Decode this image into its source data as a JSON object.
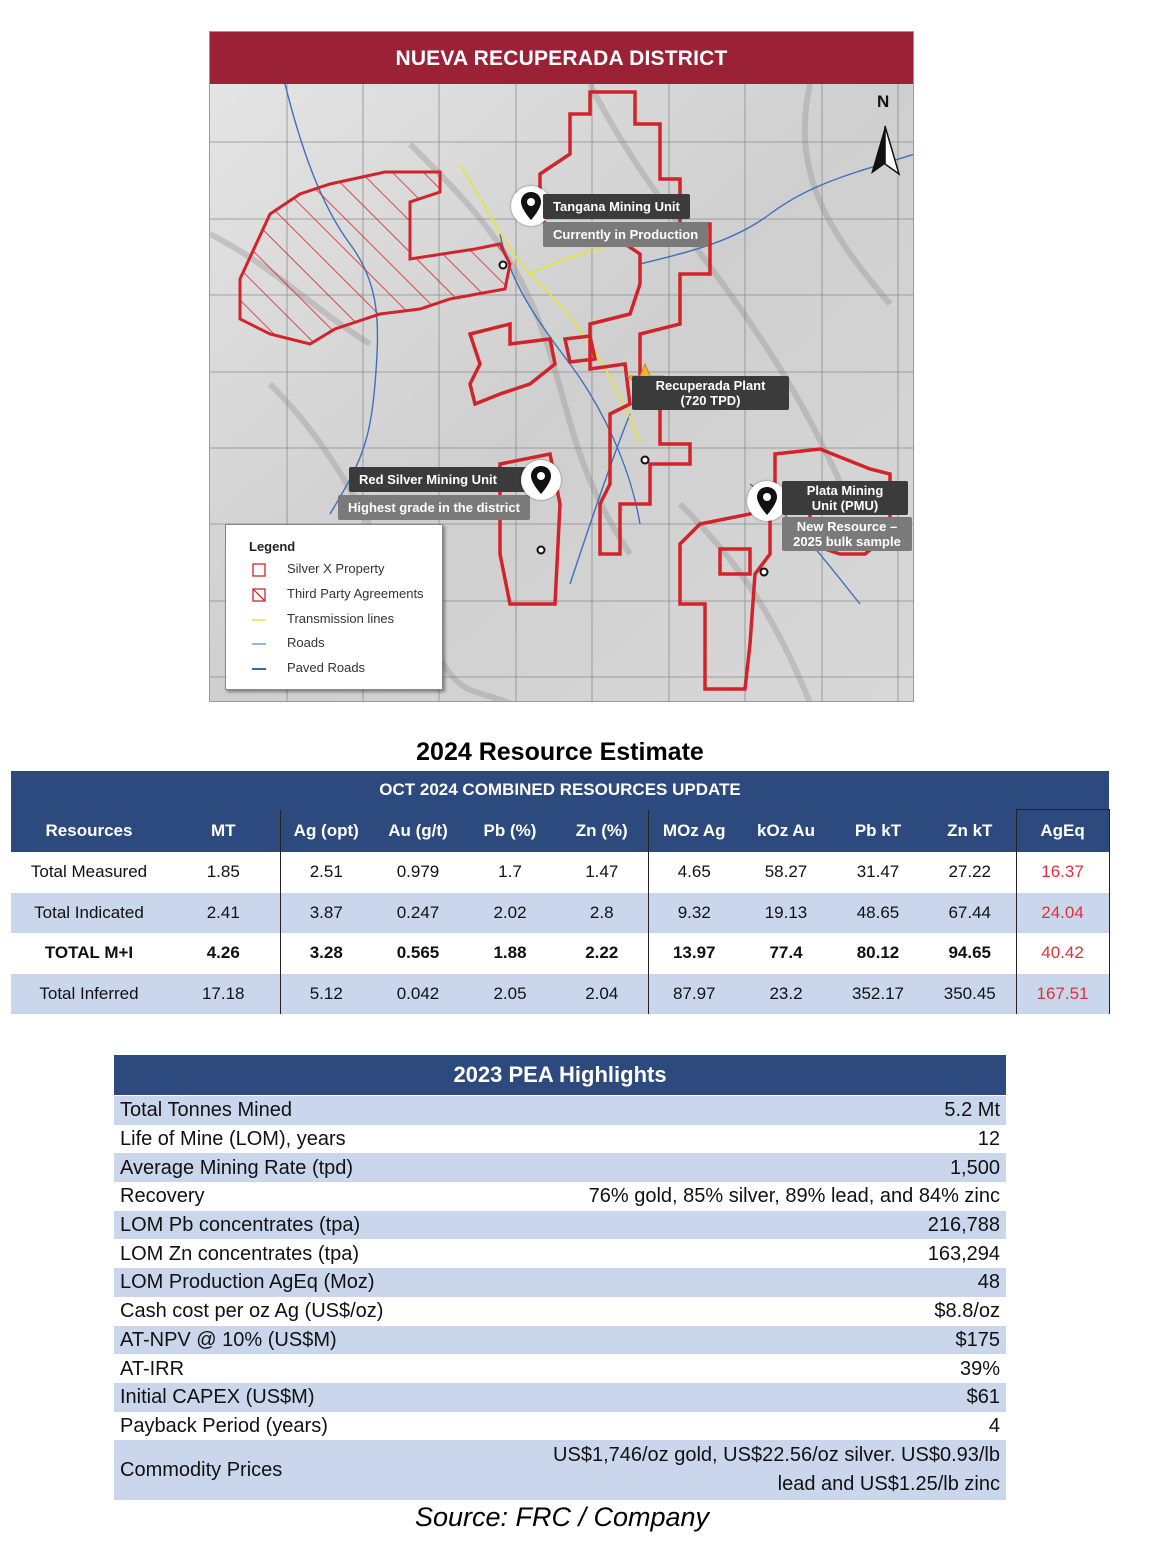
{
  "map": {
    "title": "NUEVA RECUPERADA DISTRICT",
    "north_label": "N",
    "markers": {
      "tangana": {
        "name": "Tangana Mining Unit",
        "status": "Currently in Production"
      },
      "plant": {
        "name": "Recuperada Plant",
        "capacity": "(720 TPD)"
      },
      "red_silver": {
        "name": "Red Silver Mining Unit",
        "status": "Highest grade in the district"
      },
      "plata": {
        "name_line1": "Plata Mining",
        "name_line2": "Unit (PMU)",
        "status_line1": "New Resource –",
        "status_line2": "2025 bulk sample"
      }
    },
    "legend": {
      "title": "Legend",
      "items": [
        {
          "label": "Silver X Property",
          "symbol": "red-outline-square",
          "color": "#d2232a"
        },
        {
          "label": "Third Party Agreements",
          "symbol": "red-hatched-square",
          "color": "#d2232a"
        },
        {
          "label": "Transmission lines",
          "symbol": "yellow-line",
          "color": "#e8e23a"
        },
        {
          "label": "Roads",
          "symbol": "light-blue-line",
          "color": "#6f9fd6"
        },
        {
          "label": "Paved Roads",
          "symbol": "blue-line",
          "color": "#3467b3"
        }
      ]
    }
  },
  "resource_estimate": {
    "title": "2024 Resource Estimate",
    "subtitle": "OCT 2024 COMBINED RESOURCES UPDATE",
    "columns": [
      "Resources",
      "MT",
      "Ag (opt)",
      "Au (g/t)",
      "Pb (%)",
      "Zn (%)",
      "MOz Ag",
      "kOz Au",
      "Pb kT",
      "Zn kT",
      "AgEq"
    ],
    "rows": [
      [
        "Total Measured",
        "1.85",
        "2.51",
        "0.979",
        "1.7",
        "1.47",
        "4.65",
        "58.27",
        "31.47",
        "27.22",
        "16.37"
      ],
      [
        "Total Indicated",
        "2.41",
        "3.87",
        "0.247",
        "2.02",
        "2.8",
        "9.32",
        "19.13",
        "48.65",
        "67.44",
        "24.04"
      ],
      [
        "TOTAL M+I",
        "4.26",
        "3.28",
        "0.565",
        "1.88",
        "2.22",
        "13.97",
        "77.4",
        "80.12",
        "94.65",
        "40.42"
      ],
      [
        "Total Inferred",
        "17.18",
        "5.12",
        "0.042",
        "2.05",
        "2.04",
        "87.97",
        "23.2",
        "352.17",
        "350.45",
        "167.51"
      ]
    ],
    "header_color": "#2c4a7e",
    "shade_color": "#c9d6ec",
    "ageq_color": "#e0313a"
  },
  "pea": {
    "title": "2023 PEA Highlights",
    "rows": [
      {
        "label": "Total Tonnes Mined",
        "value": "5.2 Mt"
      },
      {
        "label": "Life of Mine (LOM), years",
        "value": "12"
      },
      {
        "label": "Average Mining Rate (tpd)",
        "value": "1,500"
      },
      {
        "label": "Recovery",
        "value": "76% gold, 85% silver, 89% lead, and 84% zinc"
      },
      {
        "label": "LOM Pb concentrates (tpa)",
        "value": "216,788"
      },
      {
        "label": "LOM Zn concentrates (tpa)",
        "value": "163,294"
      },
      {
        "label": "LOM Production AgEq (Moz)",
        "value": "48"
      },
      {
        "label": "Cash cost per oz Ag (US$/oz)",
        "value": "$8.8/oz"
      },
      {
        "label": "AT-NPV @ 10% (US$M)",
        "value": "$175"
      },
      {
        "label": "AT-IRR",
        "value": "39%"
      },
      {
        "label": "Initial CAPEX (US$M)",
        "value": "$61"
      },
      {
        "label": "Payback Period (years)",
        "value": "4"
      },
      {
        "label": "Commodity Prices",
        "value_line1": "US$1,746/oz gold, US$22.56/oz silver. US$0.93/lb",
        "value_line2": "lead and US$1.25/lb zinc"
      }
    ]
  },
  "source": "Source: FRC / Company"
}
